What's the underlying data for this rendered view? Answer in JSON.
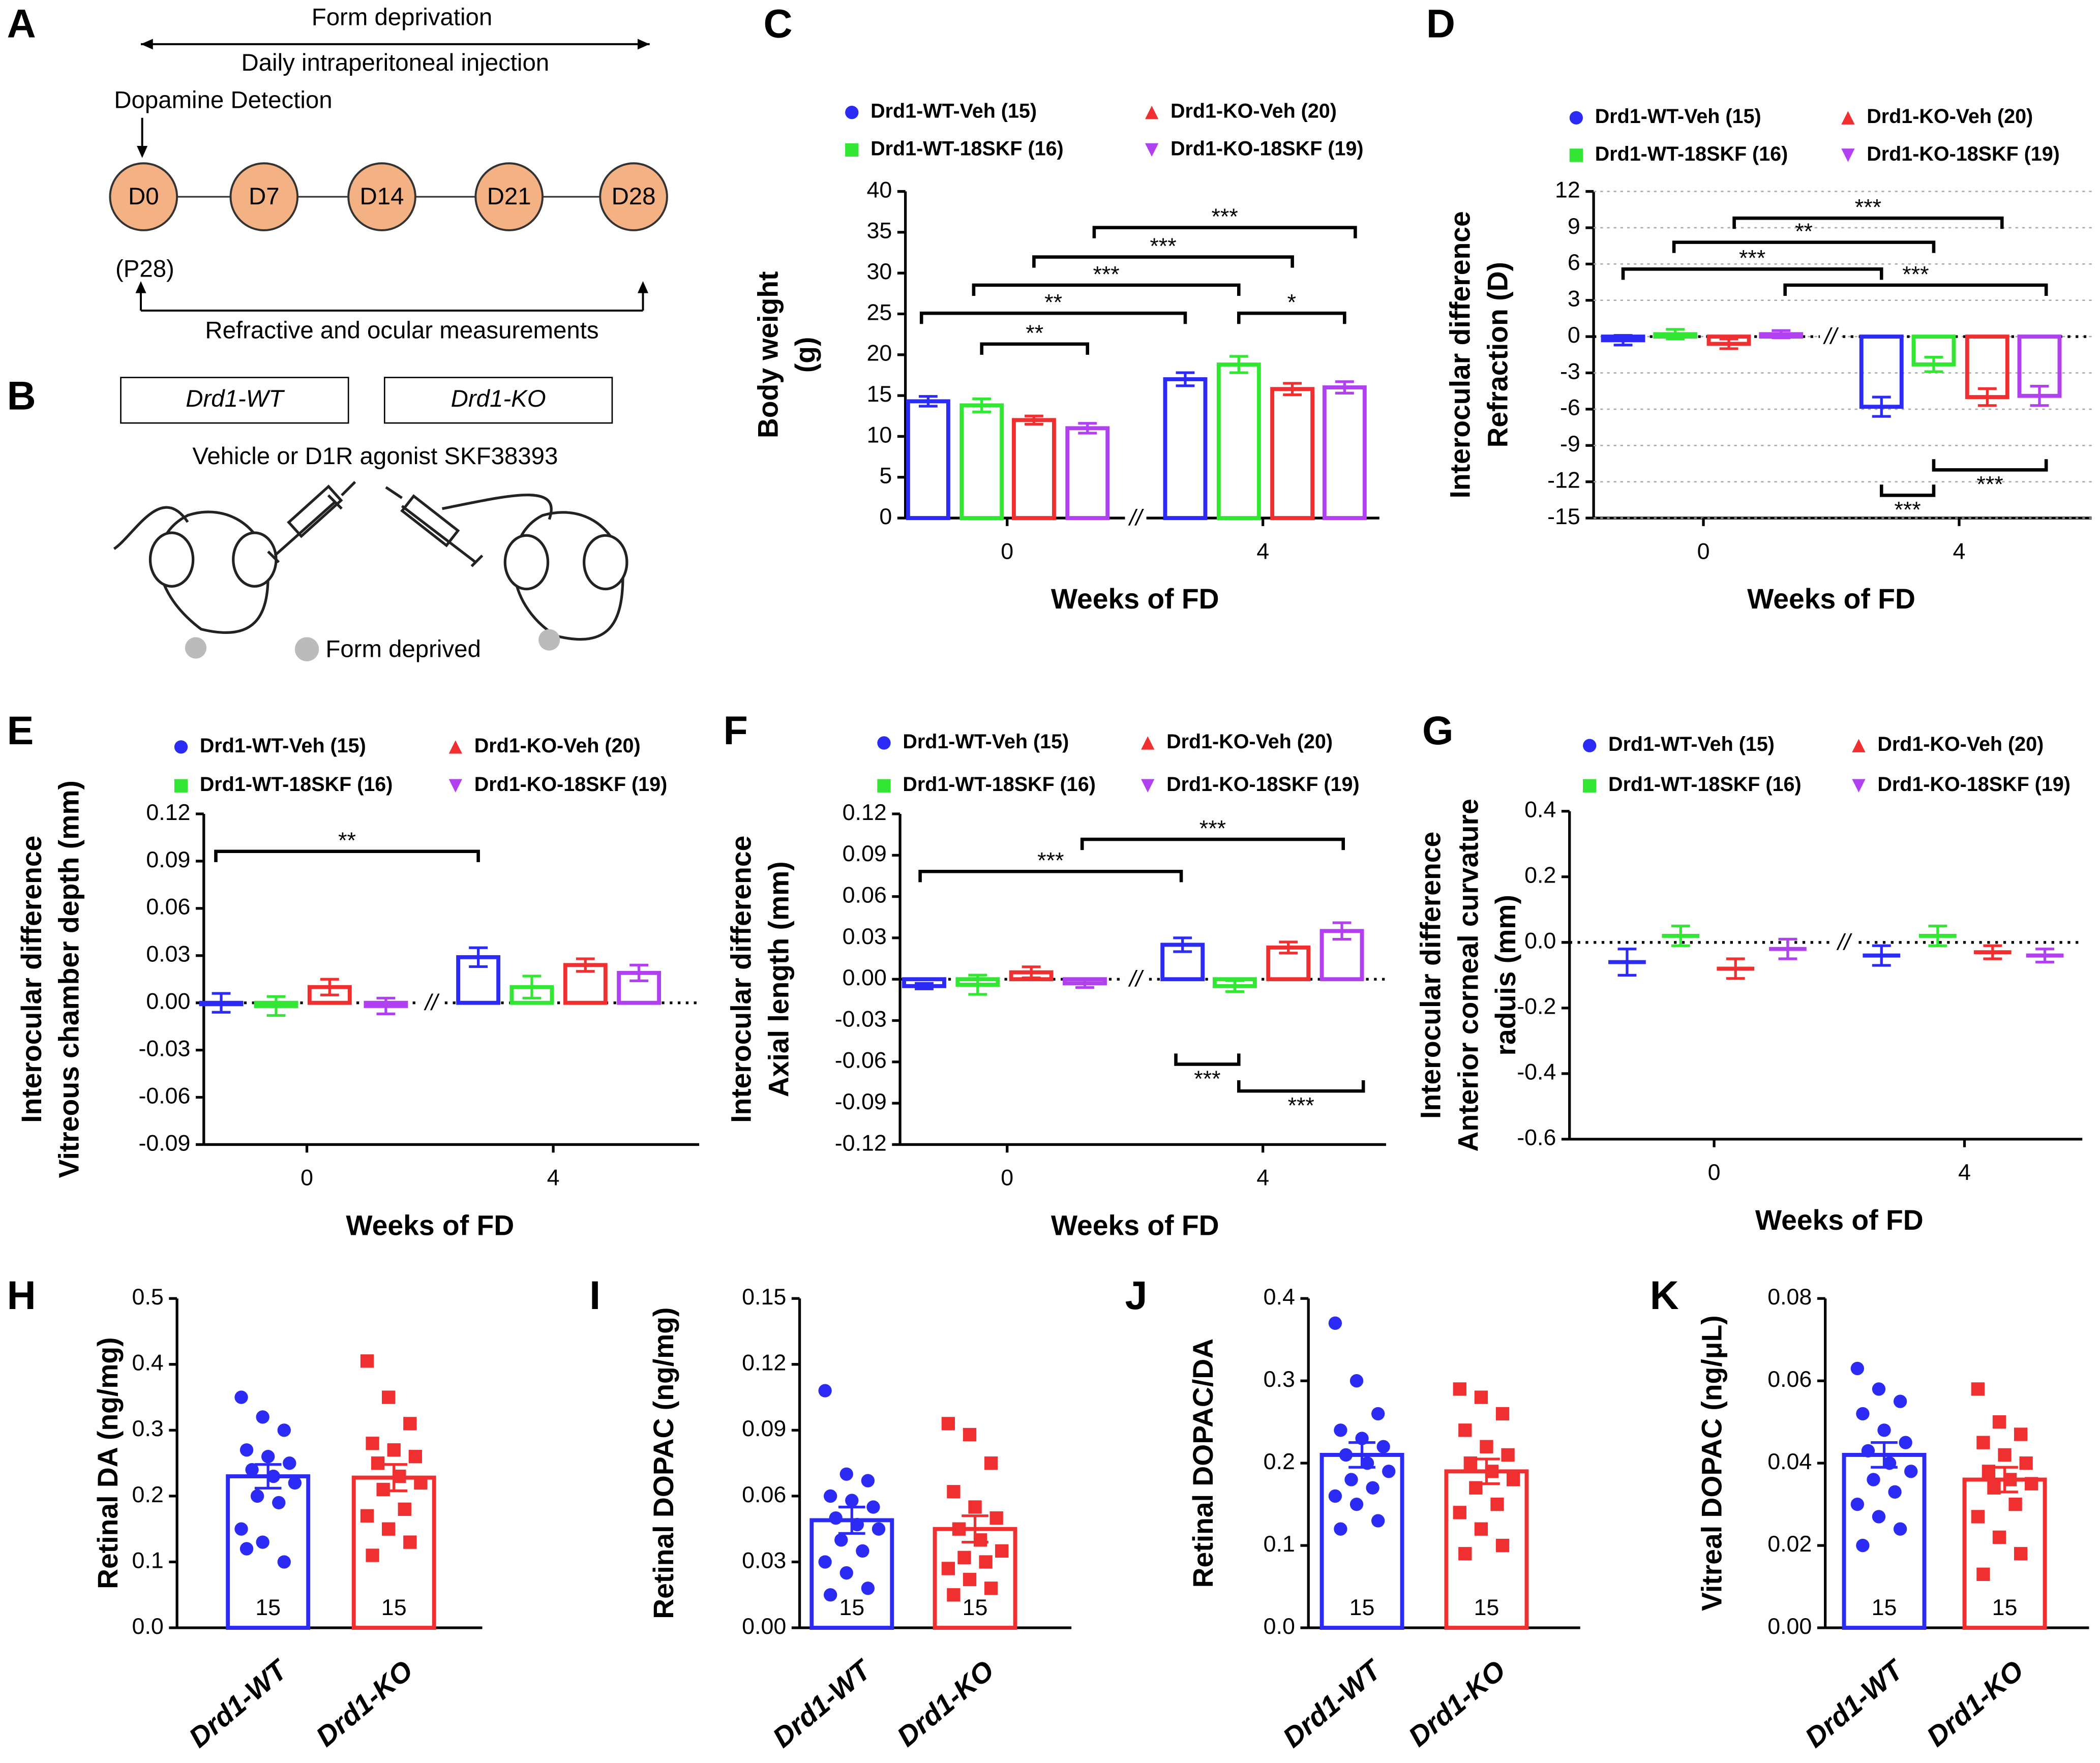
{
  "panel_a": {
    "letter": "A",
    "top_arrow": "Form deprivation",
    "injection": "Daily intraperitoneal injection",
    "detection": "Dopamine Detection",
    "timepoints": [
      "D0",
      "D7",
      "D14",
      "D21",
      "D28"
    ],
    "age": "(P28)",
    "bottom_arrow": "Refractive and ocular measurements"
  },
  "panel_b": {
    "letter": "B",
    "groups": [
      "Drd1-WT",
      "Drd1-KO"
    ],
    "treatment": "Vehicle or D1R agonist SKF38393",
    "legend": "Form deprived"
  },
  "chart_data": [
    {
      "type": "bar",
      "panel": "C",
      "ylabel": [
        "Body weight",
        "(g)"
      ],
      "xlabel": "Weeks of FD",
      "categories": [
        "0",
        "4"
      ],
      "axis_break": "//",
      "zero_line": false,
      "series": [
        {
          "name": "Drd1-WT-Veh (15)",
          "color": "#2b2bf5",
          "values": [
            14.3,
            17.0
          ],
          "errors": [
            0.6,
            0.8
          ]
        },
        {
          "name": "Drd1-WT-18SKF (16)",
          "color": "#33e633",
          "values": [
            13.8,
            18.8
          ],
          "errors": [
            0.8,
            1.0
          ]
        },
        {
          "name": "Drd1-KO-Veh (20)",
          "color": "#f03030",
          "values": [
            12.0,
            15.8
          ],
          "errors": [
            0.5,
            0.7
          ]
        },
        {
          "name": "Drd1-KO-18SKF (19)",
          "color": "#b040f0",
          "values": [
            11.0,
            16.0
          ],
          "errors": [
            0.6,
            0.7
          ]
        }
      ],
      "ylim": [
        0,
        40
      ],
      "yticks": [
        0,
        5,
        10,
        15,
        20,
        25,
        30,
        35,
        40
      ],
      "annotations": [
        "***",
        "***",
        "***",
        "**",
        "**",
        "*"
      ]
    },
    {
      "type": "bar",
      "panel": "D",
      "ylabel": [
        "Interocular difference",
        "Refraction (D)"
      ],
      "xlabel": "Weeks of FD",
      "categories": [
        "0",
        "4"
      ],
      "axis_break": "//",
      "zero_line": true,
      "series": [
        {
          "name": "Drd1-WT-Veh (15)",
          "color": "#2b2bf5",
          "values": [
            -0.3,
            -5.8
          ],
          "errors": [
            0.4,
            0.8
          ]
        },
        {
          "name": "Drd1-WT-18SKF (16)",
          "color": "#33e633",
          "values": [
            0.2,
            -2.3
          ],
          "errors": [
            0.4,
            0.6
          ]
        },
        {
          "name": "Drd1-KO-Veh (20)",
          "color": "#f03030",
          "values": [
            -0.6,
            -5.0
          ],
          "errors": [
            0.4,
            0.7
          ]
        },
        {
          "name": "Drd1-KO-18SKF (19)",
          "color": "#b040f0",
          "values": [
            0.2,
            -4.9
          ],
          "errors": [
            0.3,
            0.8
          ]
        }
      ],
      "ylim": [
        -15,
        12
      ],
      "yticks": [
        -15,
        -12,
        -9,
        -6,
        -3,
        0,
        3,
        6,
        9,
        12
      ],
      "grid": true,
      "annotations": [
        "***",
        "**",
        "***",
        "***",
        "***",
        "***"
      ]
    },
    {
      "type": "bar",
      "panel": "E",
      "ylabel": [
        "Interocular difference",
        "Vitreous chamber depth (mm)"
      ],
      "xlabel": "Weeks of FD",
      "categories": [
        "0",
        "4"
      ],
      "axis_break": "//",
      "zero_line": true,
      "series": [
        {
          "name": "Drd1-WT-Veh (15)",
          "color": "#2b2bf5",
          "values": [
            0.0,
            0.029
          ],
          "errors": [
            0.006,
            0.006
          ]
        },
        {
          "name": "Drd1-WT-18SKF (16)",
          "color": "#33e633",
          "values": [
            -0.002,
            0.01
          ],
          "errors": [
            0.006,
            0.007
          ]
        },
        {
          "name": "Drd1-KO-Veh (20)",
          "color": "#f03030",
          "values": [
            0.01,
            0.024
          ],
          "errors": [
            0.005,
            0.004
          ]
        },
        {
          "name": "Drd1-KO-18SKF (19)",
          "color": "#b040f0",
          "values": [
            -0.002,
            0.019
          ],
          "errors": [
            0.005,
            0.005
          ]
        }
      ],
      "ylim": [
        -0.09,
        0.12
      ],
      "yticks": [
        -0.09,
        -0.06,
        -0.03,
        {
          "value": 0,
          "label": "0.00"
        },
        0.03,
        0.06,
        0.09,
        0.12
      ],
      "annotations": [
        "**"
      ]
    },
    {
      "type": "bar",
      "panel": "F",
      "ylabel": [
        "Interocular difference",
        "Axial length (mm)"
      ],
      "xlabel": "Weeks of FD",
      "categories": [
        "0",
        "4"
      ],
      "axis_break": "//",
      "zero_line": true,
      "series": [
        {
          "name": "Drd1-WT-Veh (15)",
          "color": "#2b2bf5",
          "values": [
            -0.005,
            0.025
          ],
          "errors": [
            0.002,
            0.005
          ]
        },
        {
          "name": "Drd1-WT-18SKF (16)",
          "color": "#33e633",
          "values": [
            -0.004,
            -0.005
          ],
          "errors": [
            0.007,
            0.004
          ]
        },
        {
          "name": "Drd1-KO-Veh (20)",
          "color": "#f03030",
          "values": [
            0.005,
            0.023
          ],
          "errors": [
            0.004,
            0.004
          ]
        },
        {
          "name": "Drd1-KO-18SKF (19)",
          "color": "#b040f0",
          "values": [
            -0.003,
            0.035
          ],
          "errors": [
            0.003,
            0.006
          ]
        }
      ],
      "ylim": [
        -0.12,
        0.12
      ],
      "yticks": [
        -0.12,
        -0.09,
        -0.06,
        -0.03,
        {
          "value": 0,
          "label": "0.00"
        },
        0.03,
        0.06,
        0.09,
        0.12
      ],
      "annotations": [
        "***",
        "***",
        "***",
        "***"
      ]
    },
    {
      "type": "scatter",
      "panel": "G",
      "ylabel": [
        "Interocular difference",
        "Anterior corneal curvature",
        "raduis (mm)"
      ],
      "xlabel": "Weeks of FD",
      "categories": [
        "0",
        "4"
      ],
      "axis_break": "//",
      "zero_line": true,
      "series": [
        {
          "name": "Drd1-WT-Veh (15)",
          "color": "#2b2bf5",
          "values": [
            -0.06,
            -0.04
          ],
          "errors": [
            0.04,
            0.03
          ]
        },
        {
          "name": "Drd1-WT-18SKF (16)",
          "color": "#33e633",
          "values": [
            0.02,
            0.02
          ],
          "errors": [
            0.03,
            0.03
          ]
        },
        {
          "name": "Drd1-KO-Veh (20)",
          "color": "#f03030",
          "values": [
            -0.08,
            -0.03
          ],
          "errors": [
            0.03,
            0.02
          ]
        },
        {
          "name": "Drd1-KO-18SKF (19)",
          "color": "#b040f0",
          "values": [
            -0.02,
            -0.04
          ],
          "errors": [
            0.03,
            0.02
          ]
        }
      ],
      "ylim": [
        -0.6,
        0.4
      ],
      "yticks": [
        -0.6,
        -0.4,
        -0.2,
        {
          "value": 0,
          "label": "0.0"
        },
        0.2,
        0.4
      ],
      "annotations": []
    },
    {
      "type": "bar",
      "panel": "H",
      "ylabel": "Retinal DA (ng/mg)",
      "categories": [
        "Drd1-WT",
        "Drd1-KO"
      ],
      "colors": [
        "#2b2bf5",
        "#f03030"
      ],
      "values": [
        0.23,
        0.228
      ],
      "errors": [
        0.018,
        0.02
      ],
      "n": [
        15,
        15
      ],
      "points": [
        [
          0.35,
          0.32,
          0.3,
          0.27,
          0.26,
          0.25,
          0.24,
          0.23,
          0.22,
          0.2,
          0.19,
          0.15,
          0.13,
          0.1,
          0.12
        ],
        [
          0.405,
          0.35,
          0.31,
          0.28,
          0.27,
          0.26,
          0.25,
          0.23,
          0.22,
          0.21,
          0.18,
          0.17,
          0.15,
          0.13,
          0.11
        ]
      ],
      "ylim": [
        0,
        0.5
      ],
      "yticks": [
        {
          "value": 0,
          "label": "0.0"
        },
        0.1,
        0.2,
        0.3,
        0.4,
        0.5
      ]
    },
    {
      "type": "bar",
      "panel": "I",
      "ylabel": "Retinal DOPAC (ng/mg)",
      "categories": [
        "Drd1-WT",
        "Drd1-KO"
      ],
      "colors": [
        "#2b2bf5",
        "#f03030"
      ],
      "values": [
        0.049,
        0.045
      ],
      "errors": [
        0.006,
        0.006
      ],
      "n": [
        15,
        15
      ],
      "points": [
        [
          0.108,
          0.07,
          0.067,
          0.06,
          0.058,
          0.055,
          0.05,
          0.047,
          0.045,
          0.04,
          0.035,
          0.03,
          0.025,
          0.018,
          0.015
        ],
        [
          0.093,
          0.088,
          0.075,
          0.062,
          0.055,
          0.05,
          0.045,
          0.04,
          0.035,
          0.032,
          0.03,
          0.027,
          0.022,
          0.018,
          0.015
        ]
      ],
      "ylim": [
        0,
        0.15
      ],
      "yticks": [
        {
          "value": 0,
          "label": "0.00"
        },
        0.03,
        0.06,
        0.09,
        0.12,
        0.15
      ]
    },
    {
      "type": "bar",
      "panel": "J",
      "ylabel": "Retinal DOPAC/DA",
      "categories": [
        "Drd1-WT",
        "Drd1-KO"
      ],
      "colors": [
        "#2b2bf5",
        "#f03030"
      ],
      "values": [
        0.21,
        0.19
      ],
      "errors": [
        0.015,
        0.015
      ],
      "n": [
        15,
        15
      ],
      "points": [
        [
          0.37,
          0.3,
          0.26,
          0.24,
          0.23,
          0.22,
          0.21,
          0.2,
          0.19,
          0.18,
          0.17,
          0.16,
          0.15,
          0.13,
          0.12
        ],
        [
          0.29,
          0.28,
          0.26,
          0.24,
          0.22,
          0.21,
          0.2,
          0.19,
          0.18,
          0.17,
          0.15,
          0.14,
          0.12,
          0.1,
          0.09
        ]
      ],
      "ylim": [
        0,
        0.4
      ],
      "yticks": [
        {
          "value": 0,
          "label": "0.0"
        },
        0.1,
        0.2,
        0.3,
        0.4
      ]
    },
    {
      "type": "bar",
      "panel": "K",
      "ylabel": "Vitreal DOPAC (ng/μL)",
      "categories": [
        "Drd1-WT",
        "Drd1-KO"
      ],
      "colors": [
        "#2b2bf5",
        "#f03030"
      ],
      "values": [
        0.042,
        0.036
      ],
      "errors": [
        0.003,
        0.003
      ],
      "n": [
        15,
        15
      ],
      "points": [
        [
          0.063,
          0.058,
          0.055,
          0.052,
          0.048,
          0.045,
          0.043,
          0.04,
          0.038,
          0.036,
          0.033,
          0.03,
          0.027,
          0.024,
          0.02
        ],
        [
          0.058,
          0.05,
          0.047,
          0.045,
          0.042,
          0.04,
          0.038,
          0.036,
          0.035,
          0.034,
          0.03,
          0.027,
          0.022,
          0.018,
          0.013
        ]
      ],
      "ylim": [
        0,
        0.08
      ],
      "yticks": [
        {
          "value": 0,
          "label": "0.00"
        },
        0.02,
        0.04,
        0.06,
        0.08
      ]
    }
  ]
}
